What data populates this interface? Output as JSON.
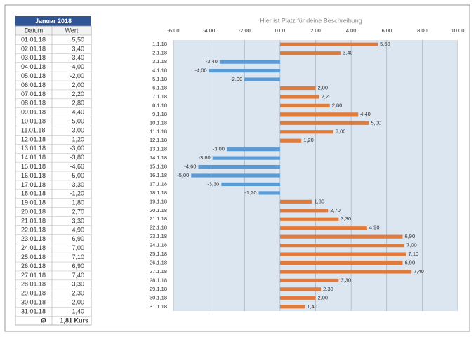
{
  "table": {
    "title": "Januar 2018",
    "columns": [
      "Datum",
      "Wert"
    ],
    "rows": [
      [
        "01.01.18",
        "5,50"
      ],
      [
        "02.01.18",
        "3,40"
      ],
      [
        "03.01.18",
        "-3,40"
      ],
      [
        "04.01.18",
        "-4,00"
      ],
      [
        "05.01.18",
        "-2,00"
      ],
      [
        "06.01.18",
        "2,00"
      ],
      [
        "07.01.18",
        "2,20"
      ],
      [
        "08.01.18",
        "2,80"
      ],
      [
        "09.01.18",
        "4,40"
      ],
      [
        "10.01.18",
        "5,00"
      ],
      [
        "11.01.18",
        "3,00"
      ],
      [
        "12.01.18",
        "1,20"
      ],
      [
        "13.01.18",
        "-3,00"
      ],
      [
        "14.01.18",
        "-3,80"
      ],
      [
        "15.01.18",
        "-4,60"
      ],
      [
        "16.01.18",
        "-5,00"
      ],
      [
        "17.01.18",
        "-3,30"
      ],
      [
        "18.01.18",
        "-1,20"
      ],
      [
        "19.01.18",
        "1,80"
      ],
      [
        "20.01.18",
        "2,70"
      ],
      [
        "21.01.18",
        "3,30"
      ],
      [
        "22.01.18",
        "4,90"
      ],
      [
        "23.01.18",
        "6,90"
      ],
      [
        "24.01.18",
        "7,00"
      ],
      [
        "25.01.18",
        "7,10"
      ],
      [
        "26.01.18",
        "6,90"
      ],
      [
        "27.01.18",
        "7,40"
      ],
      [
        "28.01.18",
        "3,30"
      ],
      [
        "29.01.18",
        "2,30"
      ],
      [
        "30.01.18",
        "2,00"
      ],
      [
        "31.01.18",
        "1,40"
      ]
    ],
    "footer": [
      "Ø",
      "1,81 Kurs"
    ]
  },
  "chart_data": {
    "type": "hbar",
    "title": "Hier ist Platz für deine Beschreibung",
    "categories": [
      "1.1.18",
      "2.1.18",
      "3.1.18",
      "4.1.18",
      "5.1.18",
      "6.1.18",
      "7.1.18",
      "8.1.18",
      "9.1.18",
      "10.1.18",
      "11.1.18",
      "12.1.18",
      "13.1.18",
      "14.1.18",
      "15.1.18",
      "16.1.18",
      "17.1.18",
      "18.1.18",
      "19.1.18",
      "20.1.18",
      "21.1.18",
      "22.1.18",
      "23.1.18",
      "24.1.18",
      "25.1.18",
      "26.1.18",
      "27.1.18",
      "28.1.18",
      "29.1.18",
      "30.1.18",
      "31.1.18"
    ],
    "values": [
      5.5,
      3.4,
      -3.4,
      -4,
      -2,
      2,
      2.2,
      2.8,
      4.4,
      5,
      3,
      1.2,
      -3,
      -3.8,
      -4.6,
      -5,
      -3.3,
      -1.2,
      1.8,
      2.7,
      3.3,
      4.9,
      6.9,
      7,
      7.1,
      6.9,
      7.4,
      3.3,
      2.3,
      2,
      1.4
    ],
    "value_labels": [
      "5,50",
      "3,40",
      "-3,40",
      "-4,00",
      "-2,00",
      "2,00",
      "2,20",
      "2,80",
      "4,40",
      "5,00",
      "3,00",
      "1,20",
      "-3,00",
      "-3,80",
      "-4,60",
      "-5,00",
      "-3,30",
      "-1,20",
      "1,80",
      "2,70",
      "3,30",
      "4,90",
      "6,90",
      "7,00",
      "7,10",
      "6,90",
      "7,40",
      "3,30",
      "2,30",
      "2,00",
      "1,40"
    ],
    "xlim": [
      -6,
      10
    ],
    "xticks": [
      {
        "value": -6,
        "label": "-6.00"
      },
      {
        "value": -4,
        "label": "-4.00"
      },
      {
        "value": -2,
        "label": "-2.00"
      },
      {
        "value": 0,
        "label": "0.00"
      },
      {
        "value": 2,
        "label": "2.00"
      },
      {
        "value": 4,
        "label": "4.00"
      },
      {
        "value": 6,
        "label": "6.00"
      },
      {
        "value": 8,
        "label": "8.00"
      },
      {
        "value": 10,
        "label": "10.00"
      }
    ],
    "grid": true,
    "color_positive": "#e07b3c",
    "color_negative": "#5b9bd5"
  }
}
